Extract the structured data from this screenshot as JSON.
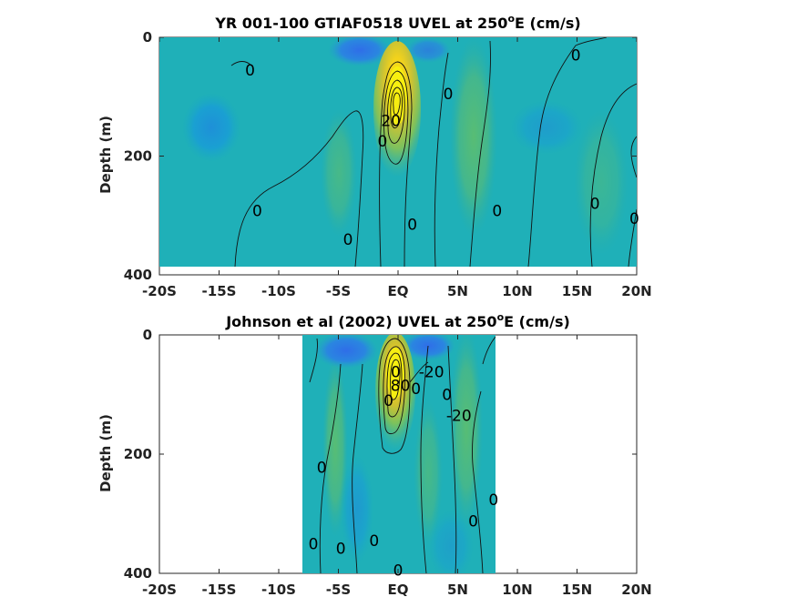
{
  "chart_data": [
    {
      "type": "heatmap",
      "title_main": "YR 001-100 GTIAF0518 UVEL at 250",
      "title_sup": "o",
      "title_tail": "E (cm/s)",
      "ylabel": "Depth (m)",
      "xlim": [
        -20,
        20
      ],
      "ylim": [
        0,
        400
      ],
      "y_reversed": true,
      "x_ticks": [
        -20,
        -15,
        -10,
        -5,
        0,
        5,
        10,
        15,
        20
      ],
      "x_tick_labels": [
        "-20S",
        "-15S",
        "-10S",
        "-5S",
        "EQ",
        "5N",
        "10N",
        "15N",
        "20N"
      ],
      "y_ticks": [
        0,
        200,
        400
      ],
      "y_tick_labels": [
        "0",
        "200",
        "400"
      ],
      "data_xrange": [
        -20,
        20
      ],
      "data_yrange": [
        0,
        385
      ],
      "contour_labels": [
        {
          "text": "0",
          "x": -12.4,
          "y": 55
        },
        {
          "text": "0",
          "x": 4.2,
          "y": 95
        },
        {
          "text": "0",
          "x": 14.9,
          "y": 30
        },
        {
          "text": "0",
          "x": -1.3,
          "y": 175
        },
        {
          "text": "20",
          "x": -0.6,
          "y": 140
        },
        {
          "text": "0",
          "x": -11.8,
          "y": 292
        },
        {
          "text": "0",
          "x": -4.2,
          "y": 340
        },
        {
          "text": "0",
          "x": 1.2,
          "y": 315
        },
        {
          "text": "0",
          "x": 8.3,
          "y": 292
        },
        {
          "text": "0",
          "x": 16.5,
          "y": 280
        },
        {
          "text": "0",
          "x": 19.8,
          "y": 305
        }
      ]
    },
    {
      "type": "heatmap",
      "title_main": "Johnson et al (2002) UVEL at 250",
      "title_sup": "o",
      "title_tail": "E (cm/s)",
      "ylabel": "Depth (m)",
      "xlim": [
        -20,
        20
      ],
      "ylim": [
        0,
        400
      ],
      "y_reversed": true,
      "x_ticks": [
        -20,
        -15,
        -10,
        -5,
        0,
        5,
        10,
        15,
        20
      ],
      "x_tick_labels": [
        "-20S",
        "-15S",
        "-10S",
        "-5S",
        "EQ",
        "5N",
        "10N",
        "15N",
        "20N"
      ],
      "y_ticks": [
        0,
        200,
        400
      ],
      "y_tick_labels": [
        "0",
        "200",
        "400"
      ],
      "data_xrange": [
        -8,
        8.2
      ],
      "data_yrange": [
        0,
        400
      ],
      "contour_labels": [
        {
          "text": "0",
          "x": -0.2,
          "y": 62
        },
        {
          "text": "80",
          "x": 0.2,
          "y": 85
        },
        {
          "text": "-20",
          "x": 2.8,
          "y": 62
        },
        {
          "text": "0",
          "x": 1.5,
          "y": 90
        },
        {
          "text": "0",
          "x": 4.1,
          "y": 100
        },
        {
          "text": "0",
          "x": -0.8,
          "y": 110
        },
        {
          "text": "-20",
          "x": 5.1,
          "y": 135
        },
        {
          "text": "0",
          "x": -6.4,
          "y": 222
        },
        {
          "text": "0",
          "x": 8.0,
          "y": 276
        },
        {
          "text": "0",
          "x": 6.3,
          "y": 312
        },
        {
          "text": "0",
          "x": -7.1,
          "y": 350
        },
        {
          "text": "0",
          "x": -4.8,
          "y": 358
        },
        {
          "text": "0",
          "x": -2.0,
          "y": 345
        },
        {
          "text": "0",
          "x": 0.0,
          "y": 395
        }
      ]
    }
  ]
}
